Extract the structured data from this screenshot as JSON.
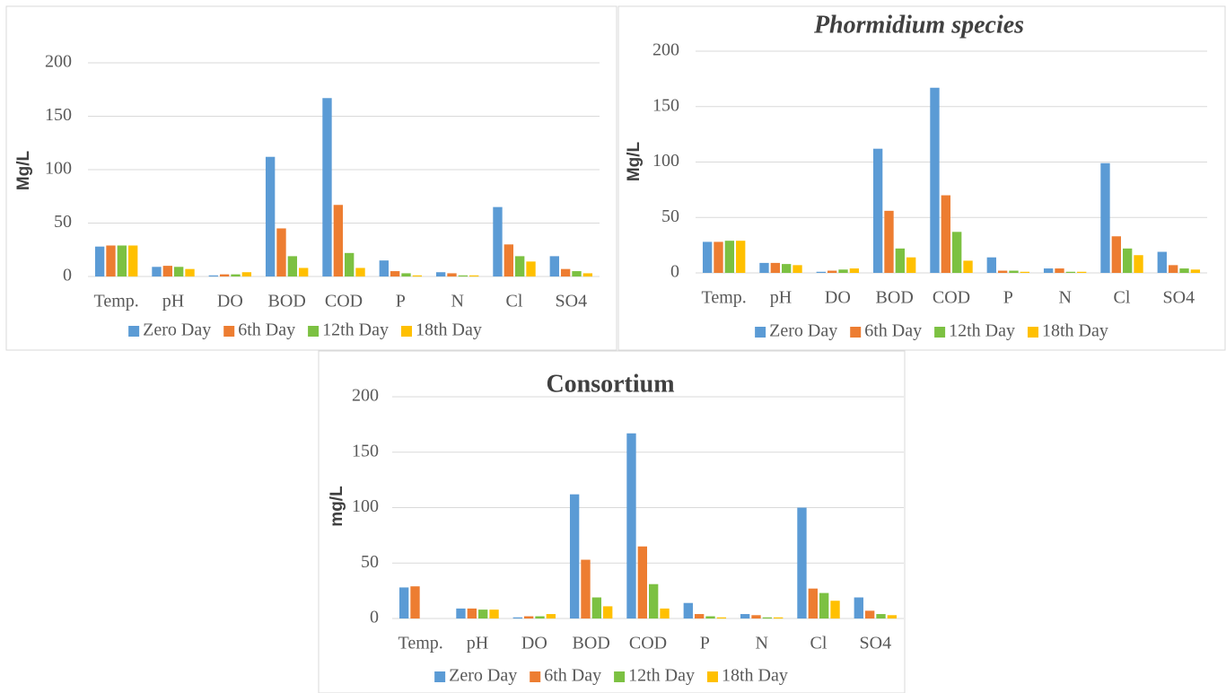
{
  "chart_data": [
    {
      "type": "bar",
      "y_label": "Mg/L",
      "categories": [
        "Temp.",
        "pH",
        "DO",
        "BOD",
        "COD",
        "P",
        "N",
        "Cl",
        "SO4"
      ],
      "series": [
        {
          "name": "Zero Day",
          "color": "#5b9bd5",
          "values": [
            28,
            9,
            1,
            112,
            167,
            15,
            4,
            65,
            19
          ]
        },
        {
          "name": "6th Day",
          "color": "#ed7d31",
          "values": [
            29,
            10,
            2,
            45,
            67,
            5,
            3,
            30,
            7
          ]
        },
        {
          "name": "12th Day",
          "color": "#7cc142",
          "values": [
            29,
            9,
            2,
            19,
            22,
            3,
            1,
            19,
            5
          ]
        },
        {
          "name": "18th Day",
          "color": "#ffc000",
          "values": [
            29,
            7,
            4,
            8,
            8,
            1,
            1,
            14,
            3
          ]
        }
      ],
      "ylim": [
        0,
        200
      ],
      "yticks": [
        0,
        50,
        100,
        150,
        200
      ],
      "grid": true
    },
    {
      "type": "bar",
      "title": "Phormidium species",
      "y_label": "Mg/L",
      "categories": [
        "Temp.",
        "pH",
        "DO",
        "BOD",
        "COD",
        "P",
        "N",
        "Cl",
        "SO4"
      ],
      "series": [
        {
          "name": "Zero Day",
          "color": "#5b9bd5",
          "values": [
            28,
            9,
            1,
            112,
            167,
            14,
            4,
            99,
            19
          ]
        },
        {
          "name": "6th Day",
          "color": "#ed7d31",
          "values": [
            28,
            9,
            2,
            56,
            70,
            2,
            4,
            33,
            7
          ]
        },
        {
          "name": "12th Day",
          "color": "#7cc142",
          "values": [
            29,
            8,
            3,
            22,
            37,
            2,
            1,
            22,
            4
          ]
        },
        {
          "name": "18th Day",
          "color": "#ffc000",
          "values": [
            29,
            7,
            4,
            14,
            11,
            1,
            1,
            16,
            3
          ]
        }
      ],
      "ylim": [
        0,
        200
      ],
      "yticks": [
        0,
        50,
        100,
        150,
        200
      ],
      "grid": true
    },
    {
      "type": "bar",
      "title": "Consortium",
      "y_label": "mg/L",
      "categories": [
        "Temp.",
        "pH",
        "DO",
        "BOD",
        "COD",
        "P",
        "N",
        "Cl",
        "SO4"
      ],
      "series": [
        {
          "name": "Zero Day",
          "color": "#5b9bd5",
          "values": [
            28,
            9,
            1,
            112,
            167,
            14,
            4,
            100,
            19
          ]
        },
        {
          "name": "6th Day",
          "color": "#ed7d31",
          "values": [
            29,
            9,
            2,
            53,
            65,
            4,
            3,
            27,
            7
          ]
        },
        {
          "name": "12th Day",
          "color": "#7cc142",
          "values": [
            null,
            8,
            2,
            19,
            31,
            2,
            1,
            23,
            4
          ]
        },
        {
          "name": "18th Day",
          "color": "#ffc000",
          "values": [
            null,
            8,
            4,
            11,
            9,
            1,
            1,
            16,
            3
          ]
        }
      ],
      "ylim": [
        0,
        200
      ],
      "yticks": [
        0,
        50,
        100,
        150,
        200
      ],
      "grid": true
    }
  ]
}
